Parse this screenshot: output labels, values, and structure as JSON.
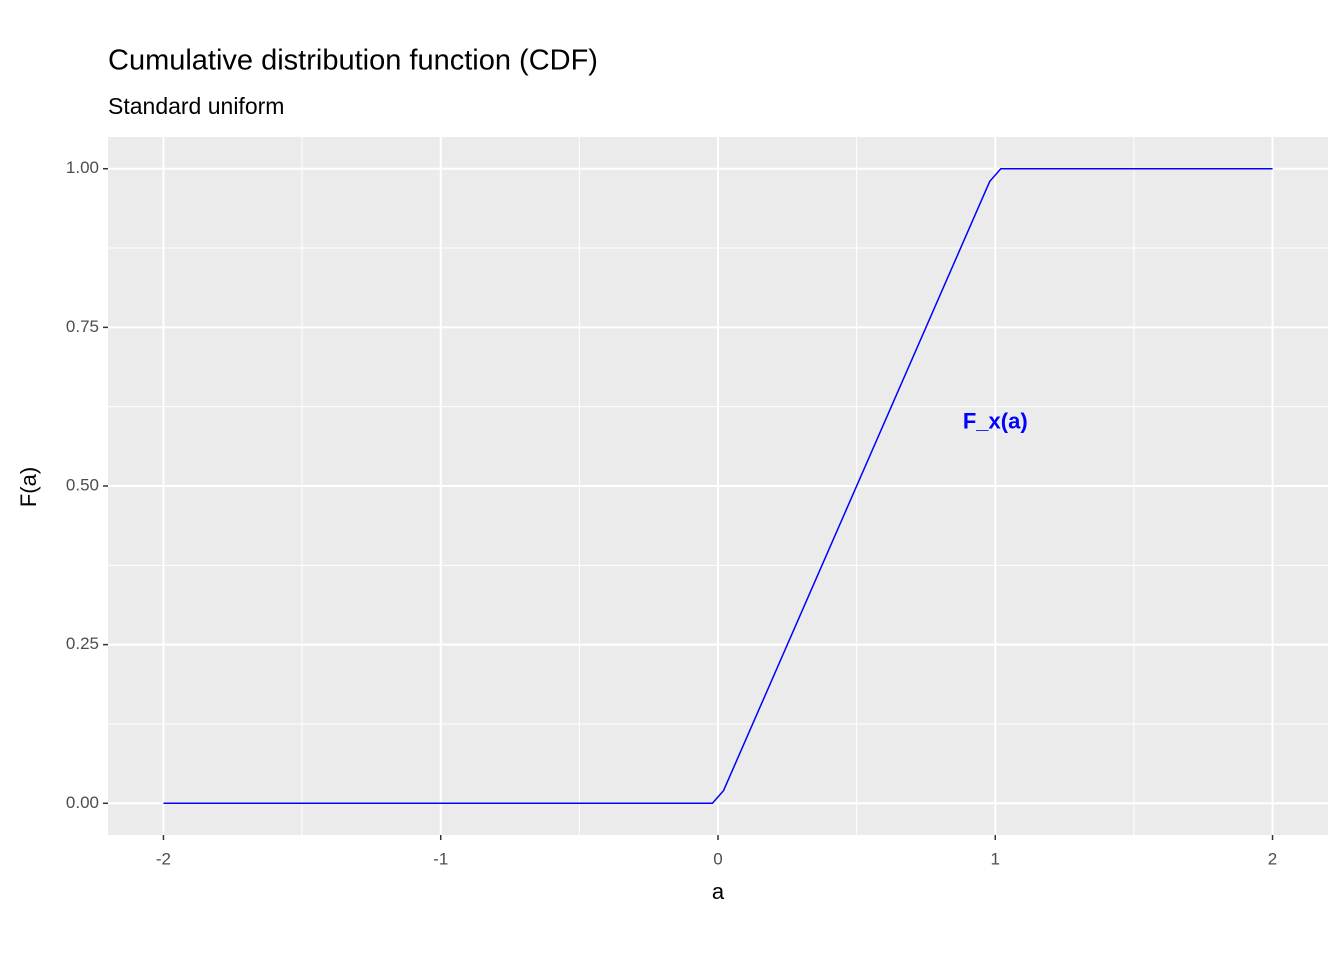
{
  "chart_data": {
    "type": "line",
    "title": "Cumulative distribution function (CDF)",
    "subtitle": "Standard uniform",
    "x_label": "a",
    "y_label": "F(a)",
    "x": [
      -2,
      -0.02,
      0.02,
      0.98,
      1.02,
      2
    ],
    "values": [
      0,
      0,
      0.02,
      0.98,
      1,
      1
    ],
    "color": "#0000ff",
    "xlim": [
      -2.2,
      2.2
    ],
    "xticks": [
      -2,
      -1,
      0,
      1,
      2
    ],
    "ylim": [
      -0.05,
      1.05
    ],
    "yticks": [
      {
        "value": 0,
        "label": "0.00"
      },
      {
        "value": 0.25,
        "label": "0.25"
      },
      {
        "value": 0.5,
        "label": "0.50"
      },
      {
        "value": 0.75,
        "label": "0.75"
      },
      {
        "value": 1,
        "label": "1.00"
      }
    ],
    "x_minor_grid": [
      -1.5,
      -0.5,
      0.5,
      1.5
    ],
    "y_minor_grid": [
      0.125,
      0.375,
      0.625,
      0.875
    ],
    "grid": true,
    "annotation": {
      "text": "F_x(a)",
      "x": 1,
      "y": 0.6
    }
  }
}
